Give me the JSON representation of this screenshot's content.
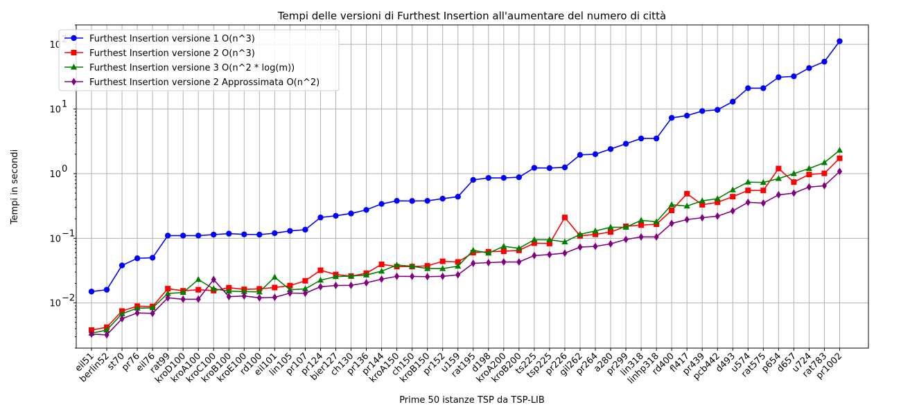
{
  "chart_data": {
    "type": "line",
    "title": "Tempi delle versioni di Furthest Insertion all'aumentare del numero di città",
    "xlabel": "Prime 50 istanze TSP da TSP-LIB",
    "ylabel": "Tempi in secondi",
    "yscale": "log",
    "ylim": [
      0.002,
      200
    ],
    "yticks": [
      {
        "value": 0.01,
        "base": "10",
        "exp": "−2"
      },
      {
        "value": 0.1,
        "base": "10",
        "exp": "−1"
      },
      {
        "value": 1,
        "base": "10",
        "exp": "0"
      },
      {
        "value": 10,
        "base": "10",
        "exp": "1"
      },
      {
        "value": 100,
        "base": "10",
        "exp": "2"
      }
    ],
    "grid": true,
    "legend_position": "upper-left",
    "categories": [
      "eil51",
      "berlin52",
      "st70",
      "pr76",
      "eil76",
      "rat99",
      "kroD100",
      "kroA100",
      "kroC100",
      "kroB100",
      "kroE100",
      "rd100",
      "eil101",
      "lin105",
      "pr107",
      "pr124",
      "bier127",
      "ch130",
      "pr136",
      "pr144",
      "kroA150",
      "ch150",
      "kroB150",
      "pr152",
      "u159",
      "rat195",
      "d198",
      "kroA200",
      "kroB200",
      "ts225",
      "tsp225",
      "pr226",
      "gil262",
      "pr264",
      "a280",
      "pr299",
      "lin318",
      "linhp318",
      "rd400",
      "fl417",
      "pr439",
      "pcb442",
      "d493",
      "u574",
      "rat575",
      "p654",
      "d657",
      "u724",
      "rat783",
      "pr1002"
    ],
    "series": [
      {
        "name": "Furthest Insertion versione 1 O(n^3)",
        "color": "#0000ff",
        "marker": "circle",
        "values": [
          0.015,
          0.016,
          0.038,
          0.049,
          0.05,
          0.11,
          0.11,
          0.11,
          0.114,
          0.118,
          0.115,
          0.114,
          0.12,
          0.13,
          0.136,
          0.21,
          0.223,
          0.242,
          0.275,
          0.34,
          0.38,
          0.378,
          0.38,
          0.41,
          0.44,
          0.8,
          0.86,
          0.86,
          0.88,
          1.23,
          1.22,
          1.25,
          1.95,
          2.0,
          2.4,
          2.9,
          3.5,
          3.5,
          7.3,
          7.9,
          9.3,
          9.7,
          13.0,
          21.0,
          21.0,
          31.0,
          32.0,
          43.0,
          54.0,
          112.0
        ]
      },
      {
        "name": "Furthest Insertion versione 2 O(n^3)",
        "color": "#ff0000",
        "marker": "square",
        "values": [
          0.0038,
          0.0042,
          0.0075,
          0.0089,
          0.0088,
          0.0166,
          0.0154,
          0.016,
          0.0155,
          0.0172,
          0.0162,
          0.0165,
          0.0173,
          0.0185,
          0.022,
          0.032,
          0.0275,
          0.026,
          0.0288,
          0.0395,
          0.0365,
          0.0365,
          0.0375,
          0.044,
          0.043,
          0.06,
          0.062,
          0.063,
          0.065,
          0.084,
          0.083,
          0.21,
          0.109,
          0.115,
          0.125,
          0.153,
          0.16,
          0.165,
          0.27,
          0.49,
          0.33,
          0.36,
          0.44,
          0.55,
          0.55,
          1.2,
          0.74,
          0.97,
          1.01,
          1.73
        ]
      },
      {
        "name": "Furthest Insertion versione 3 O(n^2 * log(m))",
        "color": "#008000",
        "marker": "triangle",
        "values": [
          0.0034,
          0.0038,
          0.0068,
          0.0083,
          0.0084,
          0.014,
          0.0145,
          0.023,
          0.0165,
          0.0152,
          0.015,
          0.0148,
          0.025,
          0.016,
          0.0165,
          0.0225,
          0.0255,
          0.026,
          0.027,
          0.031,
          0.0385,
          0.037,
          0.034,
          0.034,
          0.037,
          0.065,
          0.059,
          0.075,
          0.07,
          0.095,
          0.095,
          0.088,
          0.115,
          0.13,
          0.148,
          0.148,
          0.19,
          0.18,
          0.33,
          0.315,
          0.38,
          0.41,
          0.56,
          0.74,
          0.73,
          0.84,
          1.0,
          1.2,
          1.48,
          2.3
        ]
      },
      {
        "name": "Furthest Insertion versione 2 Approssimata O(n^2)",
        "color": "#800080",
        "marker": "diamond",
        "values": [
          0.0033,
          0.0032,
          0.0057,
          0.007,
          0.0069,
          0.012,
          0.0114,
          0.0114,
          0.023,
          0.0125,
          0.0128,
          0.012,
          0.0122,
          0.0142,
          0.0141,
          0.0178,
          0.0186,
          0.0187,
          0.0205,
          0.0233,
          0.0258,
          0.0257,
          0.0255,
          0.0258,
          0.0272,
          0.041,
          0.042,
          0.043,
          0.043,
          0.054,
          0.056,
          0.059,
          0.073,
          0.075,
          0.082,
          0.096,
          0.105,
          0.105,
          0.17,
          0.195,
          0.208,
          0.22,
          0.265,
          0.36,
          0.35,
          0.47,
          0.5,
          0.62,
          0.65,
          1.08
        ]
      }
    ]
  }
}
